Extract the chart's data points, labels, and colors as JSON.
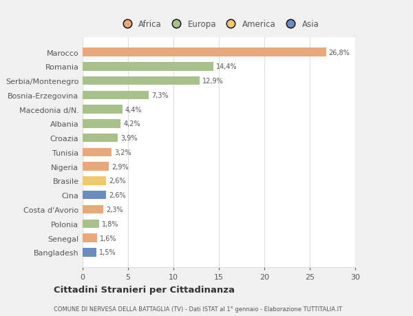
{
  "categories": [
    "Bangladesh",
    "Senegal",
    "Polonia",
    "Costa d'Avorio",
    "Cina",
    "Brasile",
    "Nigeria",
    "Tunisia",
    "Croazia",
    "Albania",
    "Macedonia d/N.",
    "Bosnia-Erzegovina",
    "Serbia/Montenegro",
    "Romania",
    "Marocco"
  ],
  "values": [
    1.5,
    1.6,
    1.8,
    2.3,
    2.6,
    2.6,
    2.9,
    3.2,
    3.9,
    4.2,
    4.4,
    7.3,
    12.9,
    14.4,
    26.8
  ],
  "labels": [
    "1,5%",
    "1,6%",
    "1,8%",
    "2,3%",
    "2,6%",
    "2,6%",
    "2,9%",
    "3,2%",
    "3,9%",
    "4,2%",
    "4,4%",
    "7,3%",
    "12,9%",
    "14,4%",
    "26,8%"
  ],
  "colors": [
    "#6b8cbf",
    "#e8a87c",
    "#a8c08a",
    "#e8a87c",
    "#6b8cbf",
    "#f0c96e",
    "#e8a87c",
    "#e8a87c",
    "#a8c08a",
    "#a8c08a",
    "#a8c08a",
    "#a8c08a",
    "#a8c08a",
    "#a8c08a",
    "#e8a87c"
  ],
  "legend_labels": [
    "Africa",
    "Europa",
    "America",
    "Asia"
  ],
  "legend_colors": [
    "#e8a87c",
    "#a8c08a",
    "#f0c96e",
    "#6b8cbf"
  ],
  "title": "Cittadini Stranieri per Cittadinanza",
  "subtitle": "COMUNE DI NERVESA DELLA BATTAGLIA (TV) - Dati ISTAT al 1° gennaio - Elaborazione TUTTITALIA.IT",
  "xlim": [
    0,
    30
  ],
  "xticks": [
    0,
    5,
    10,
    15,
    20,
    25,
    30
  ],
  "bg_color": "#f0f0f0",
  "plot_bg_color": "#ffffff",
  "grid_color": "#dddddd",
  "text_color": "#555555"
}
